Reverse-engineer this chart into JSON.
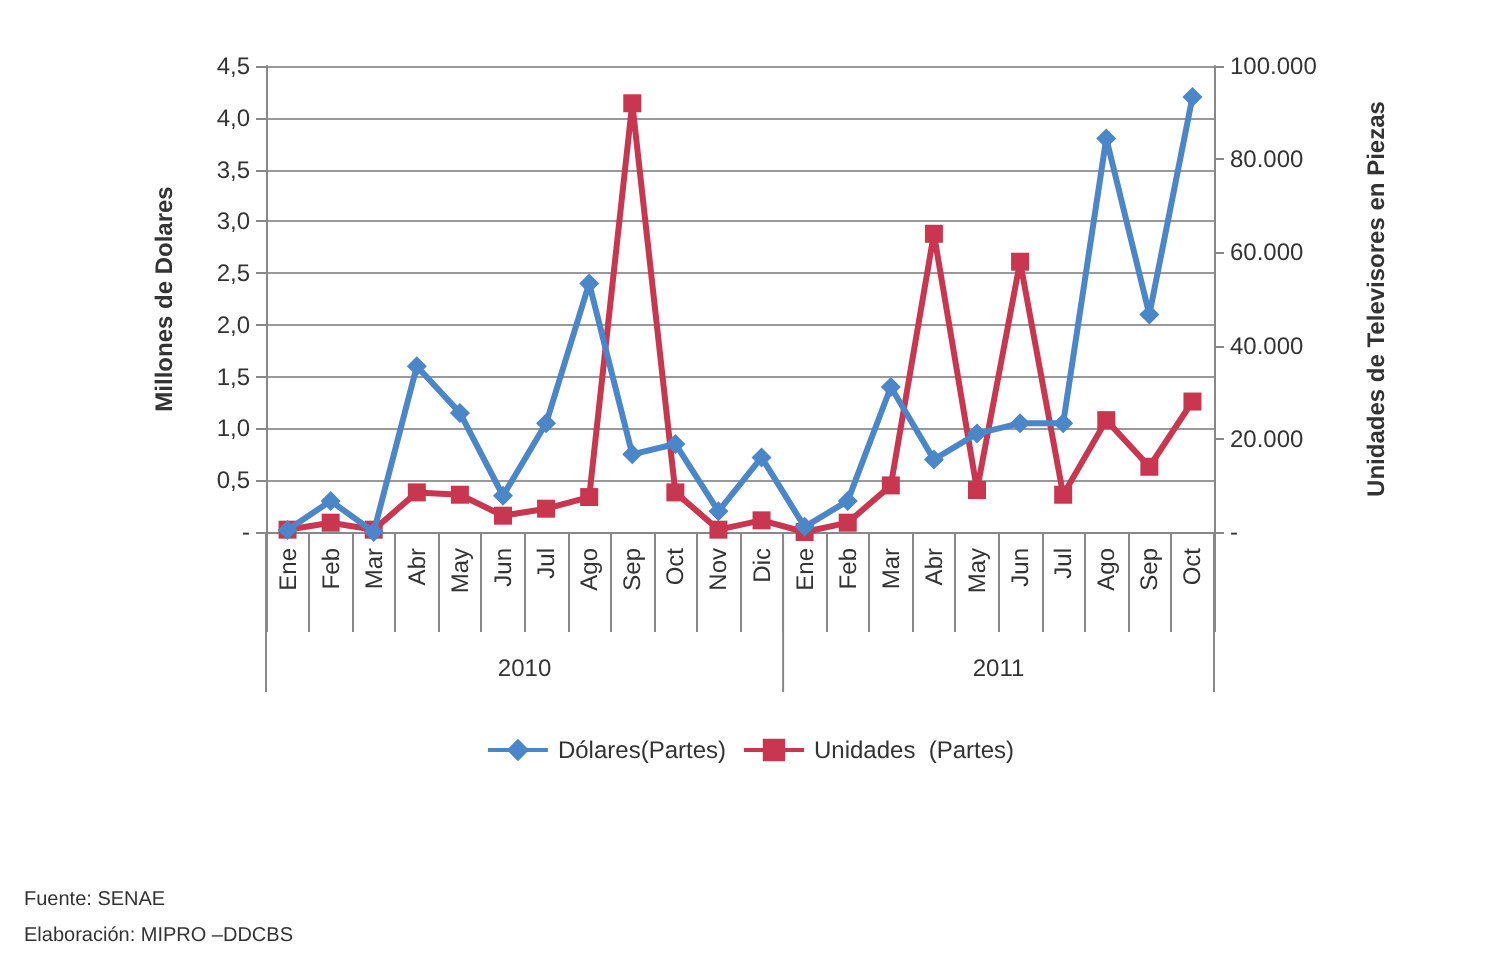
{
  "chart_data": {
    "type": "line",
    "categories": [
      "Ene",
      "Feb",
      "Mar",
      "Abr",
      "May",
      "Jun",
      "Jul",
      "Ago",
      "Sep",
      "Oct",
      "Nov",
      "Dic",
      "Ene",
      "Feb",
      "Mar",
      "Abr",
      "May",
      "Jun",
      "Jul",
      "Ago",
      "Sep",
      "Oct"
    ],
    "series": [
      {
        "name": "Dólares(Partes)",
        "color": "#4a86c8",
        "marker": "diamond",
        "values": [
          0.02,
          0.3,
          0.0,
          1.6,
          1.15,
          0.35,
          1.05,
          2.4,
          0.75,
          0.85,
          0.2,
          0.72,
          0.05,
          0.3,
          1.4,
          0.7,
          0.95,
          1.05,
          1.05,
          3.8,
          2.1,
          4.2
        ]
      },
      {
        "name": "Unidades  (Partes)",
        "color": "#c8374f",
        "marker": "square",
        "axis": "y2",
        "values": [
          500,
          2000,
          500,
          8500,
          8000,
          3500,
          5000,
          7500,
          92000,
          8500,
          500,
          2500,
          0,
          2000,
          10000,
          64000,
          9000,
          58000,
          8000,
          24000,
          14000,
          28000
        ]
      }
    ],
    "ylabel": "Millones de Dolares",
    "y2label": "Unidades de Televisores en Piezas",
    "ylim": [
      0,
      4.5
    ],
    "yticks": [
      {
        "value": 0,
        "label": "-"
      },
      {
        "value": 0.5,
        "label": "0,5"
      },
      {
        "value": 1,
        "label": "1,0"
      },
      {
        "value": 1.5,
        "label": "1,5"
      },
      {
        "value": 2,
        "label": "2,0"
      },
      {
        "value": 2.5,
        "label": "2,5"
      },
      {
        "value": 3,
        "label": "3,0"
      },
      {
        "value": 3.5,
        "label": "3,5"
      },
      {
        "value": 4,
        "label": "4,0"
      },
      {
        "value": 4.5,
        "label": "4,5"
      }
    ],
    "y2lim": [
      0,
      100000
    ],
    "y2ticks": [
      {
        "value": 0,
        "label": "-"
      },
      {
        "value": 20000,
        "label": "20.000"
      },
      {
        "value": 40000,
        "label": "40.000"
      },
      {
        "value": 60000,
        "label": "60.000"
      },
      {
        "value": 80000,
        "label": "80.000"
      },
      {
        "value": 100000,
        "label": "100.000"
      }
    ],
    "grid": "y",
    "legend": "bottom",
    "annotations": [
      "2010",
      "2011",
      "Fuente: SENAE",
      "Elaboración: MIPRO –DDCBS"
    ]
  }
}
